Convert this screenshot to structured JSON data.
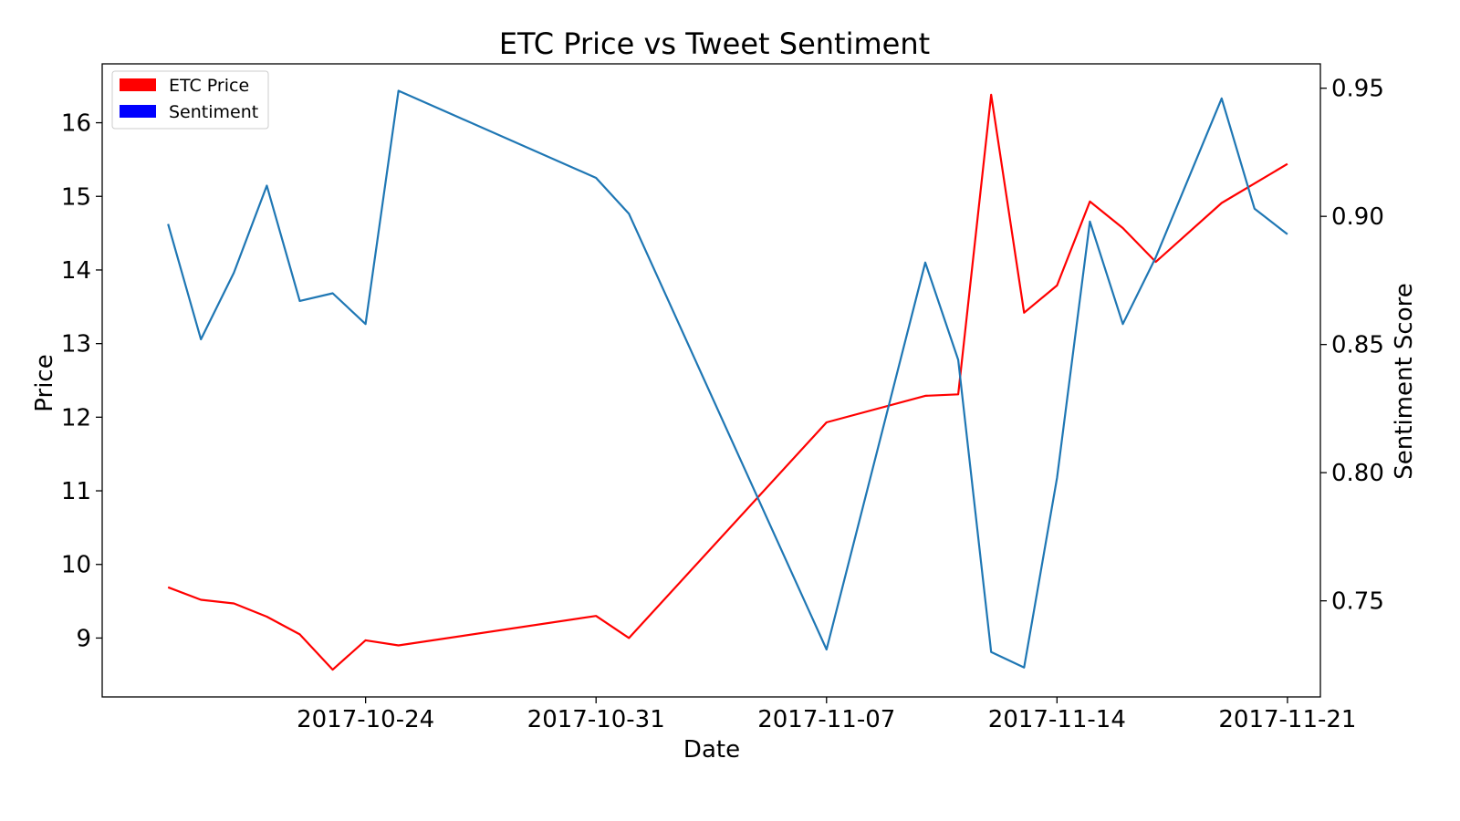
{
  "chart_data": {
    "type": "line",
    "title": "ETC Price vs Tweet Sentiment",
    "xlabel": "Date",
    "ylabel": "Price",
    "y2label": "Sentiment Score",
    "x_ticks": [
      "2017-10-24",
      "2017-10-31",
      "2017-11-07",
      "2017-11-14",
      "2017-11-21"
    ],
    "y_ticks": [
      "9",
      "10",
      "11",
      "12",
      "13",
      "14",
      "15",
      "16"
    ],
    "y2_ticks": [
      "0.75",
      "0.80",
      "0.85",
      "0.90",
      "0.95"
    ],
    "xlim": [
      "2017-10-16",
      "2017-11-22"
    ],
    "ylim": [
      8.2,
      16.8
    ],
    "y2lim": [
      0.7125,
      0.9595
    ],
    "legend": {
      "placement": "top-left",
      "entries": [
        {
          "label": "ETC Price",
          "color": "#ff0000"
        },
        {
          "label": "Sentiment",
          "color": "#0000ff"
        }
      ]
    },
    "series": [
      {
        "name": "ETC Price",
        "axis": "left",
        "color": "#ff0000",
        "x": [
          "2017-10-18",
          "2017-10-19",
          "2017-10-20",
          "2017-10-21",
          "2017-10-22",
          "2017-10-23",
          "2017-10-24",
          "2017-10-25",
          "2017-10-31",
          "2017-11-01",
          "2017-11-07",
          "2017-11-10",
          "2017-11-11",
          "2017-11-12",
          "2017-11-13",
          "2017-11-14",
          "2017-11-15",
          "2017-11-16",
          "2017-11-17",
          "2017-11-19",
          "2017-11-21"
        ],
        "values": [
          9.69,
          9.52,
          9.47,
          9.29,
          9.05,
          8.57,
          8.97,
          8.9,
          9.3,
          9.0,
          11.93,
          12.29,
          12.31,
          16.38,
          13.42,
          13.79,
          14.93,
          14.57,
          14.11,
          14.91,
          15.44
        ]
      },
      {
        "name": "Sentiment",
        "axis": "right",
        "color": "#1f77b4",
        "x": [
          "2017-10-18",
          "2017-10-19",
          "2017-10-20",
          "2017-10-21",
          "2017-10-22",
          "2017-10-23",
          "2017-10-24",
          "2017-10-25",
          "2017-10-31",
          "2017-11-01",
          "2017-11-07",
          "2017-11-10",
          "2017-11-11",
          "2017-11-12",
          "2017-11-13",
          "2017-11-14",
          "2017-11-15",
          "2017-11-16",
          "2017-11-17",
          "2017-11-19",
          "2017-11-20",
          "2017-11-21"
        ],
        "values": [
          0.897,
          0.852,
          0.878,
          0.912,
          0.867,
          0.87,
          0.858,
          0.949,
          0.915,
          0.901,
          0.731,
          0.882,
          0.844,
          0.73,
          0.724,
          0.798,
          0.898,
          0.858,
          0.884,
          0.946,
          0.903,
          0.893
        ]
      }
    ]
  }
}
